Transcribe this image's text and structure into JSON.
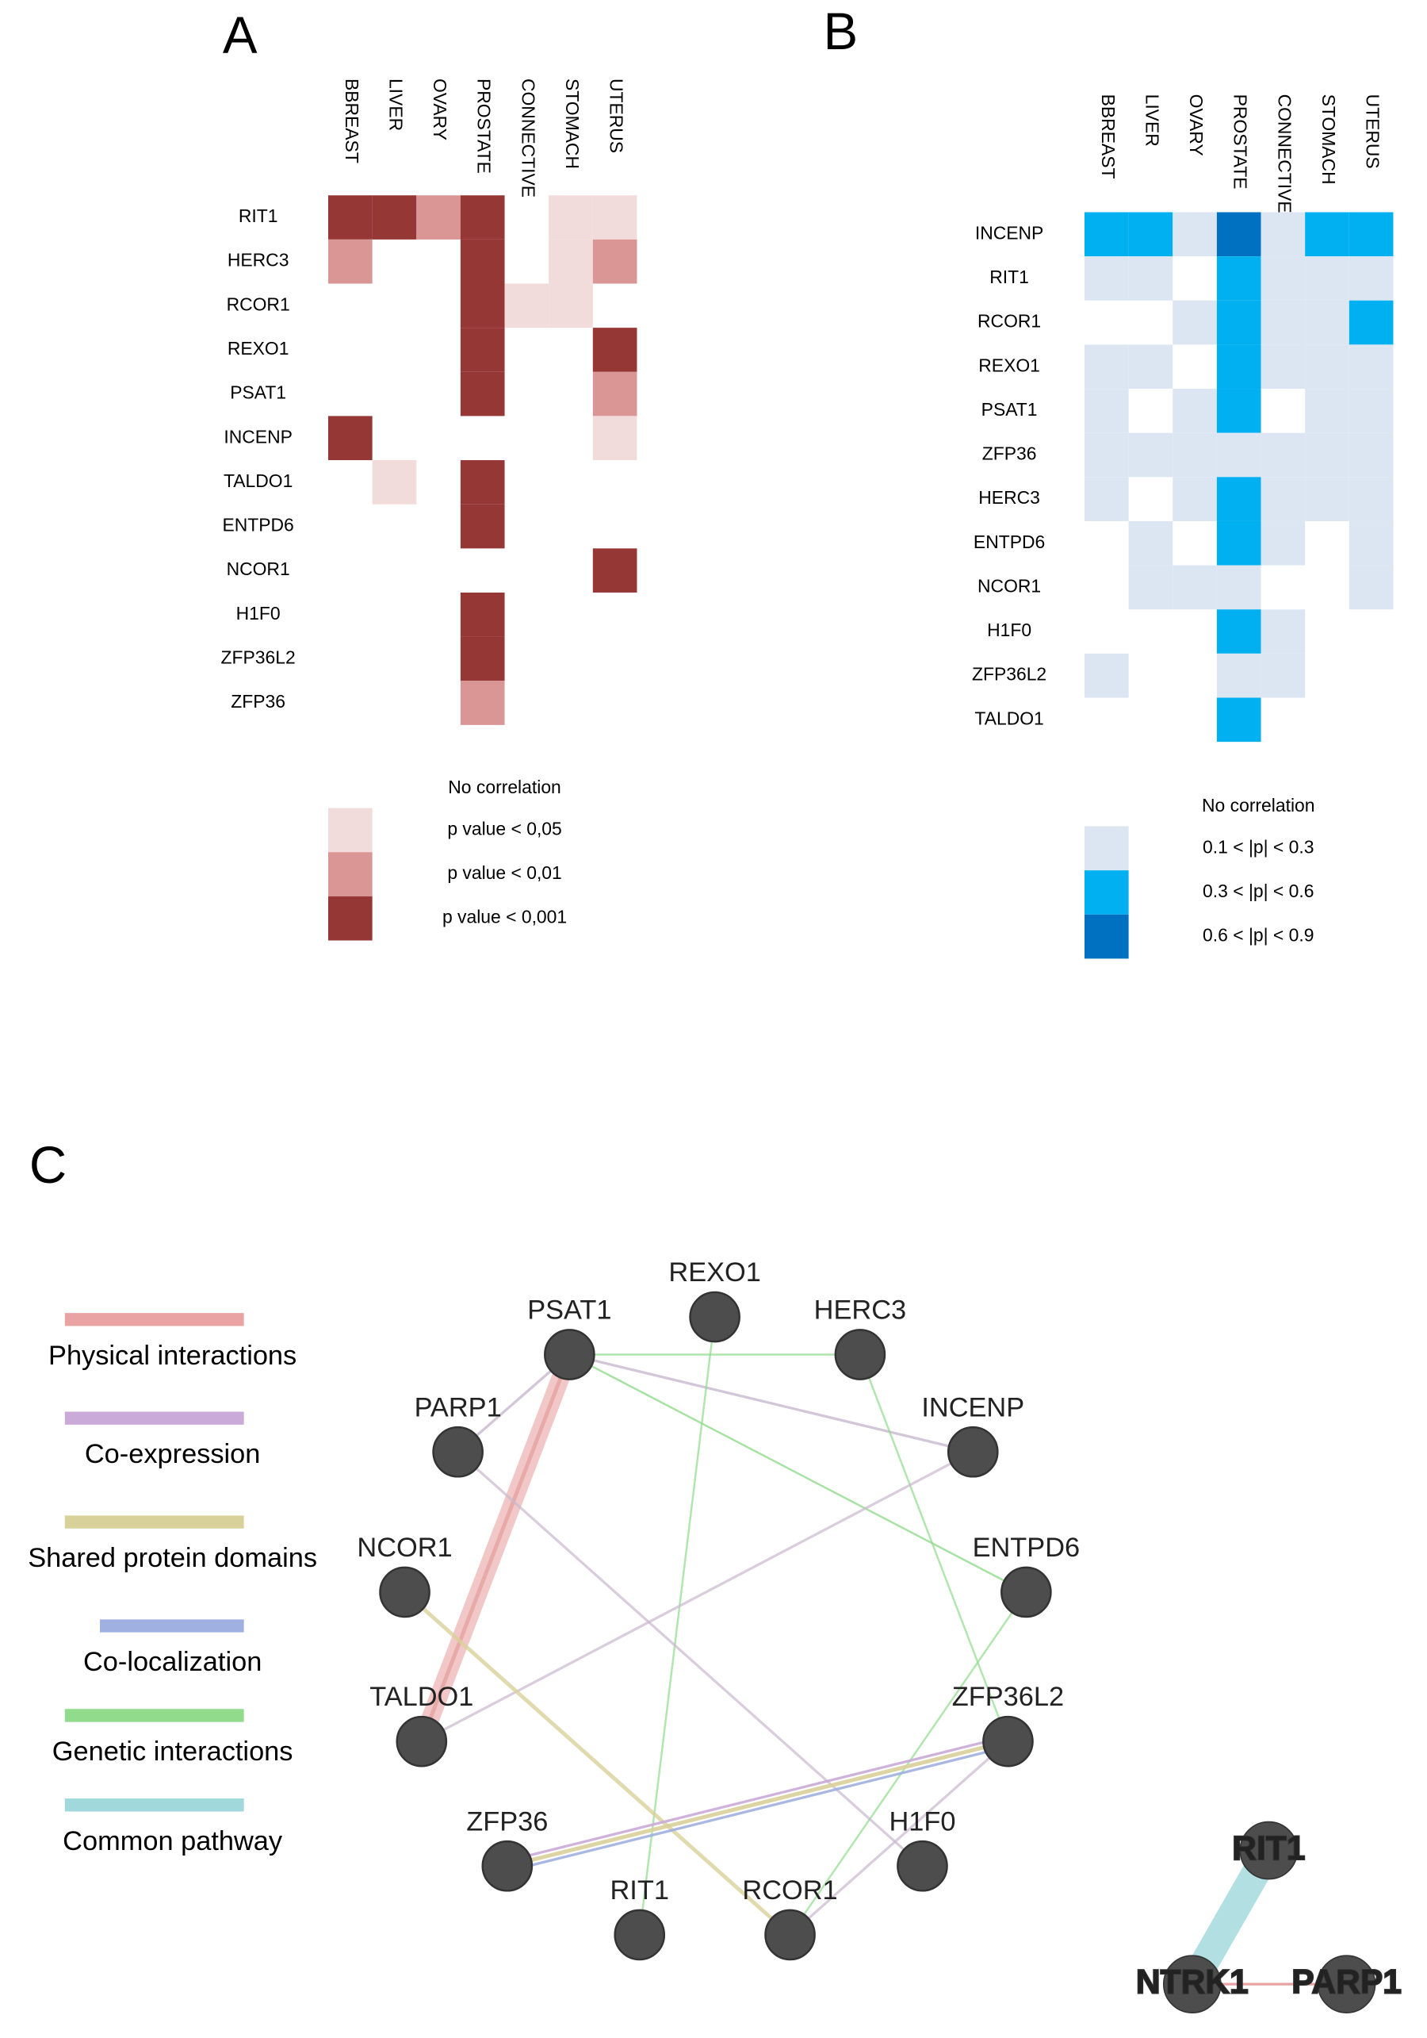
{
  "panel_a": {
    "letter": "A",
    "columns": [
      "BBREAST",
      "LIVER",
      "OVARY",
      "PROSTATE",
      "CONNECTIVE",
      "STOMACH",
      "UTERUS"
    ],
    "rows": [
      "RIT1",
      "HERC3",
      "RCOR1",
      "REXO1",
      "PSAT1",
      "INCENP",
      "TALDO1",
      "ENTPD6",
      "NCOR1",
      "H1F0",
      "ZFP36L2",
      "ZFP36"
    ],
    "cells": [
      [
        3,
        3,
        2,
        3,
        0,
        1,
        1
      ],
      [
        2,
        0,
        0,
        3,
        0,
        1,
        2
      ],
      [
        0,
        0,
        0,
        3,
        1,
        1,
        0
      ],
      [
        0,
        0,
        0,
        3,
        0,
        0,
        3
      ],
      [
        0,
        0,
        0,
        3,
        0,
        0,
        2
      ],
      [
        3,
        0,
        0,
        0,
        0,
        0,
        1
      ],
      [
        0,
        1,
        0,
        3,
        0,
        0,
        0
      ],
      [
        0,
        0,
        0,
        3,
        0,
        0,
        0
      ],
      [
        0,
        0,
        0,
        0,
        0,
        0,
        3
      ],
      [
        0,
        0,
        0,
        3,
        0,
        0,
        0
      ],
      [
        0,
        0,
        0,
        3,
        0,
        0,
        0
      ],
      [
        0,
        0,
        0,
        2,
        0,
        0,
        0
      ]
    ],
    "legend": {
      "title": "No correlation",
      "levels": [
        {
          "label": "p value < 0,05",
          "color": "#f2dcdb"
        },
        {
          "label": "p value < 0,01",
          "color": "#d99694"
        },
        {
          "label": "p value < 0,001",
          "color": "#953735"
        }
      ]
    }
  },
  "panel_b": {
    "letter": "B",
    "columns": [
      "BBREAST",
      "LIVER",
      "OVARY",
      "PROSTATE",
      "CONNECTIVE",
      "STOMACH",
      "UTERUS"
    ],
    "rows": [
      "INCENP",
      "RIT1",
      "RCOR1",
      "REXO1",
      "PSAT1",
      "ZFP36",
      "HERC3",
      "ENTPD6",
      "NCOR1",
      "H1F0",
      "ZFP36L2",
      "TALDO1"
    ],
    "cells": [
      [
        2,
        2,
        1,
        3,
        1,
        2,
        2
      ],
      [
        1,
        1,
        0,
        2,
        1,
        1,
        1
      ],
      [
        0,
        0,
        1,
        2,
        1,
        1,
        2
      ],
      [
        1,
        1,
        0,
        2,
        1,
        1,
        1
      ],
      [
        1,
        0,
        1,
        2,
        0,
        1,
        1
      ],
      [
        1,
        1,
        1,
        1,
        1,
        1,
        1
      ],
      [
        1,
        0,
        1,
        2,
        1,
        1,
        1
      ],
      [
        0,
        1,
        0,
        2,
        1,
        0,
        1
      ],
      [
        0,
        1,
        1,
        1,
        0,
        0,
        1
      ],
      [
        0,
        0,
        0,
        2,
        1,
        0,
        0
      ],
      [
        1,
        0,
        0,
        1,
        1,
        0,
        0
      ],
      [
        0,
        0,
        0,
        2,
        0,
        0,
        0
      ]
    ],
    "legend": {
      "title": "No correlation",
      "levels": [
        {
          "label": "0.1 < |p| < 0.3",
          "color": "#dce6f2"
        },
        {
          "label": "0.3 < |p| < 0.6",
          "color": "#00b0f0"
        },
        {
          "label": "0.6 < |p| < 0.9",
          "color": "#0070c0"
        }
      ]
    }
  },
  "panel_c": {
    "letter": "C",
    "legend": [
      {
        "label": "Physical interactions",
        "color": "#eaa3a3"
      },
      {
        "label": "Co-expression",
        "color": "#c9aad8"
      },
      {
        "label": "Shared protein domains",
        "color": "#d9d19a"
      },
      {
        "label": "Co-localization",
        "color": "#a0b0e0"
      },
      {
        "label": "Genetic interactions",
        "color": "#90dc8c"
      },
      {
        "label": "Common pathway",
        "color": "#a0d8dc"
      }
    ],
    "nodes": [
      "PSAT1",
      "REXO1",
      "HERC3",
      "PARP1",
      "INCENP",
      "NCOR1",
      "ENTPD6",
      "TALDO1",
      "ZFP36L2",
      "ZFP36",
      "H1F0",
      "RIT1",
      "RCOR1"
    ],
    "pathway_nodes": [
      "RIT1",
      "NTRK1",
      "PARP1"
    ]
  }
}
